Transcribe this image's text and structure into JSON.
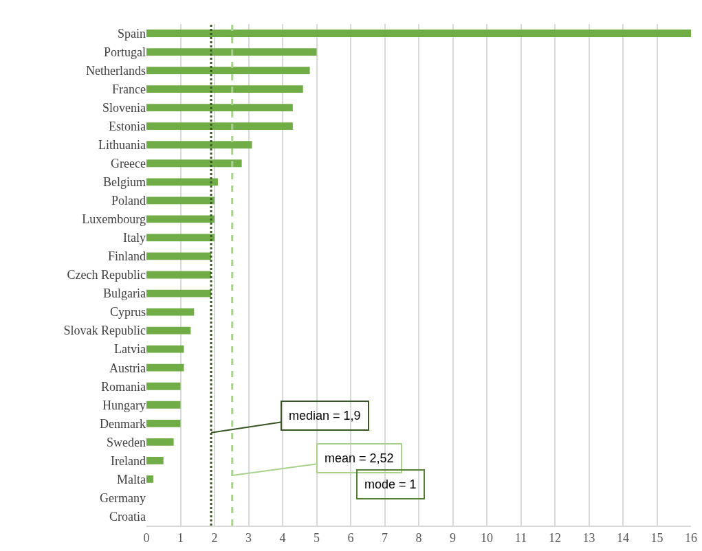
{
  "chart_data": {
    "type": "bar",
    "orientation": "horizontal",
    "categories": [
      "Spain",
      "Portugal",
      "Netherlands",
      "France",
      "Slovenia",
      "Estonia",
      "Lithuania",
      "Greece",
      "Belgium",
      "Poland",
      "Luxembourg",
      "Italy",
      "Finland",
      "Czech Republic",
      "Bulgaria",
      "Cyprus",
      "Slovak Republic",
      "Latvia",
      "Austria",
      "Romania",
      "Hungary",
      "Denmark",
      "Sweden",
      "Ireland",
      "Malta",
      "Germany",
      "Croatia"
    ],
    "values": [
      16,
      5,
      4.8,
      4.6,
      4.3,
      4.3,
      3.1,
      2.8,
      2.1,
      2.0,
      2.0,
      2.0,
      1.9,
      1.9,
      1.9,
      1.4,
      1.3,
      1.1,
      1.1,
      1.0,
      1.0,
      1.0,
      0.8,
      0.5,
      0.2,
      0,
      0
    ],
    "color": "#70ad47",
    "xlim": [
      0,
      16
    ],
    "xticks": [
      0,
      1,
      2,
      3,
      4,
      5,
      6,
      7,
      8,
      9,
      10,
      11,
      12,
      13,
      14,
      15,
      16
    ],
    "grid": "x",
    "legend": false,
    "ref_lines": [
      {
        "axis": "x",
        "value": 1.9,
        "label": "median = 1,9",
        "color": "#375623",
        "line_style": "dotted"
      },
      {
        "axis": "x",
        "value": 2.52,
        "label": "mean = 2,52",
        "color": "#a9d18e",
        "line_style": "dashed"
      }
    ],
    "annotations": [
      "mode = 1"
    ]
  }
}
